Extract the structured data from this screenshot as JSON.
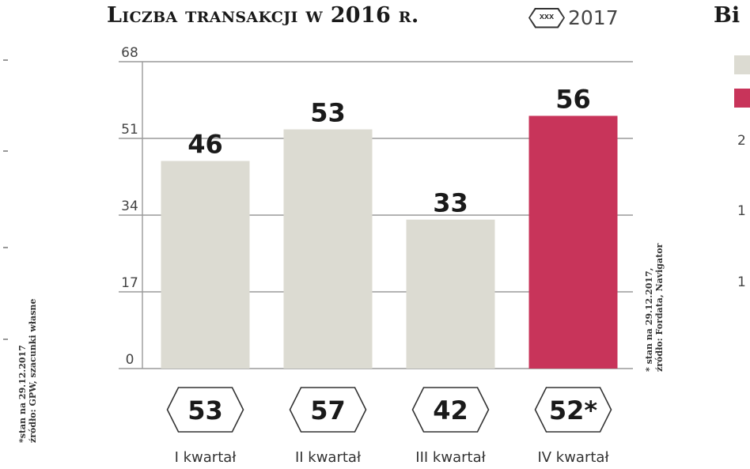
{
  "header": {
    "title": "Liczba transakcji w 2016 r.",
    "cut_title": "Bi",
    "legend_hex_label": "xxx",
    "legend_year": "2017"
  },
  "chart_data": {
    "type": "bar",
    "title": "Liczba transakcji w 2016 r.",
    "categories": [
      "I kwartał",
      "II kwartał",
      "III kwartał",
      "IV kwartał"
    ],
    "series": [
      {
        "values": [
          46,
          53,
          33,
          56
        ]
      }
    ],
    "values_2017": [
      "53",
      "57",
      "42",
      "52*"
    ],
    "highlight_index": 3,
    "colors": {
      "bar": "#dcdbd2",
      "highlight": "#c8345a",
      "grid": "#9a9a9a"
    },
    "ylim": [
      0,
      68
    ],
    "yticks": [
      0,
      17,
      34,
      51,
      68
    ],
    "grid": true
  },
  "notes": {
    "right": [
      "* stan na 29.12.2017,",
      "źródło: Fordata, Navigator"
    ],
    "left": [
      "*stan na 29.12.2017",
      "źródło: GPW, szacunki własne"
    ]
  },
  "partial_right": {
    "colors": {
      "light": "#dcdbd2",
      "accent": "#c8345a"
    },
    "tick_labels": [
      "2",
      "1",
      "1"
    ]
  }
}
